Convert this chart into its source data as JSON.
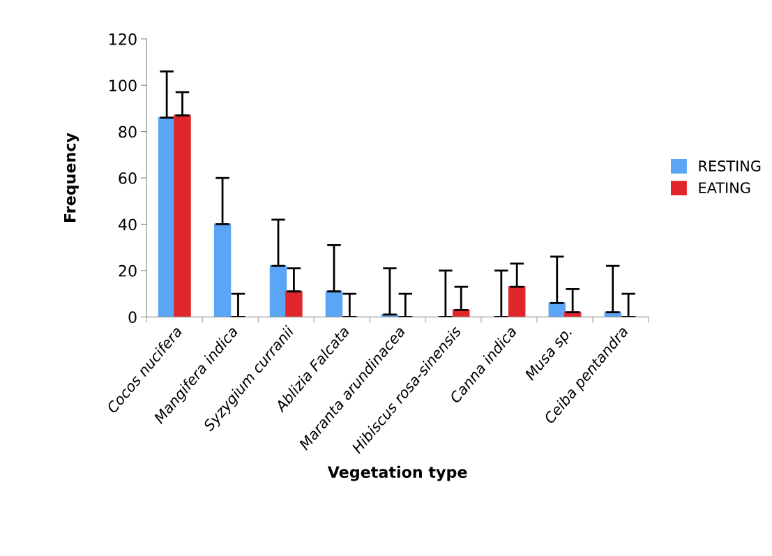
{
  "chart_data": {
    "type": "bar",
    "xlabel": "Vegetation type",
    "ylabel": "Frequency",
    "categories": [
      "Cocos nucifera",
      "Mangifera indica",
      "Syzygium curranii",
      "Ablizia Falcata",
      "Maranta arundinacea",
      "Hibiscus rosa-sinensis",
      "Canna indica",
      "Musa sp.",
      "Ceiba pentandra"
    ],
    "series": [
      {
        "name": "RESTING",
        "color": "#5aa5f5",
        "values": [
          86,
          40,
          22,
          11,
          1,
          0,
          0,
          6,
          2
        ],
        "errors": [
          [
            86,
            106
          ],
          [
            40,
            60
          ],
          [
            22,
            42
          ],
          [
            11,
            31
          ],
          [
            1,
            21
          ],
          [
            0,
            20
          ],
          [
            0,
            20
          ],
          [
            6,
            26
          ],
          [
            2,
            22
          ]
        ]
      },
      {
        "name": "EATING",
        "color": "#e0252b",
        "values": [
          87,
          0,
          11,
          0,
          0,
          3,
          13,
          2,
          0
        ],
        "errors": [
          [
            87,
            97
          ],
          [
            0,
            10
          ],
          [
            11,
            21
          ],
          [
            0,
            10
          ],
          [
            0,
            10
          ],
          [
            3,
            13
          ],
          [
            13,
            23
          ],
          [
            2,
            12
          ],
          [
            0,
            10
          ]
        ]
      }
    ],
    "ylim": [
      0,
      120
    ],
    "yticks": [
      0,
      20,
      40,
      60,
      80,
      100,
      120
    ],
    "grid": false,
    "legend": "right"
  }
}
